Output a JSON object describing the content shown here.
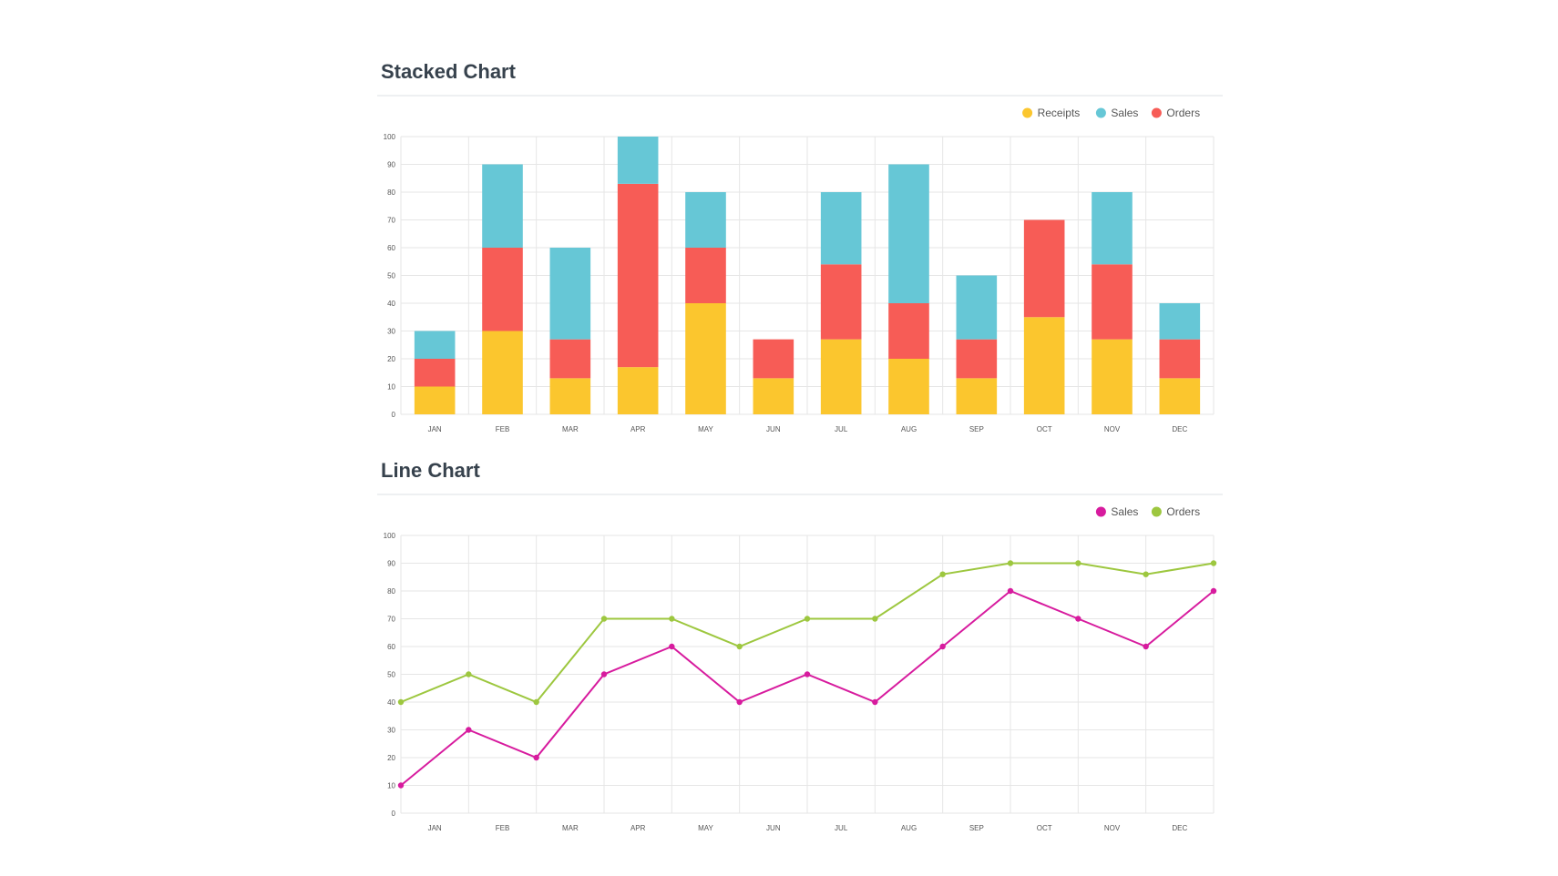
{
  "charts": {
    "stacked": {
      "title": "Stacked Chart"
    },
    "line": {
      "title": "Line Chart"
    }
  },
  "chart_data": [
    {
      "type": "bar",
      "stacked": true,
      "title": "Stacked Chart",
      "categories": [
        "JAN",
        "FEB",
        "MAR",
        "APR",
        "MAY",
        "JUN",
        "JUL",
        "AUG",
        "SEP",
        "OCT",
        "NOV",
        "DEC"
      ],
      "series": [
        {
          "name": "Receipts",
          "color": "#fbc62e",
          "values": [
            10,
            30,
            13,
            17,
            40,
            13,
            27,
            20,
            13,
            35,
            27,
            13
          ]
        },
        {
          "name": "Orders",
          "color": "#f75c56",
          "values": [
            10,
            30,
            14,
            66,
            20,
            14,
            27,
            20,
            14,
            35,
            27,
            14
          ]
        },
        {
          "name": "Sales",
          "color": "#66c7d6",
          "values": [
            10,
            30,
            33,
            17,
            20,
            0,
            26,
            50,
            23,
            0,
            26,
            13
          ]
        }
      ],
      "legend_order": [
        "Receipts",
        "Sales",
        "Orders"
      ],
      "legend_position": "top-right",
      "ylim": [
        0,
        100
      ],
      "yticks": [
        0,
        10,
        20,
        30,
        40,
        50,
        60,
        70,
        80,
        90,
        100
      ],
      "grid": true
    },
    {
      "type": "line",
      "title": "Line Chart",
      "categories": [
        "JAN",
        "FEB",
        "MAR",
        "APR",
        "MAY",
        "JUN",
        "JUL",
        "AUG",
        "SEP",
        "OCT",
        "NOV",
        "DEC"
      ],
      "x": [
        0,
        1,
        2,
        3,
        4,
        5,
        6,
        7,
        8,
        9,
        10,
        11,
        12
      ],
      "series": [
        {
          "name": "Sales",
          "color": "#d71b9e",
          "values": [
            10,
            30,
            20,
            50,
            60,
            40,
            50,
            40,
            60,
            80,
            70,
            60,
            80
          ]
        },
        {
          "name": "Orders",
          "color": "#9dc73f",
          "values": [
            40,
            50,
            40,
            70,
            70,
            60,
            70,
            70,
            86,
            90,
            90,
            86,
            90
          ]
        }
      ],
      "legend_position": "top-right",
      "ylim": [
        0,
        100
      ],
      "yticks": [
        0,
        10,
        20,
        30,
        40,
        50,
        60,
        70,
        80,
        90,
        100
      ],
      "grid": true
    }
  ]
}
